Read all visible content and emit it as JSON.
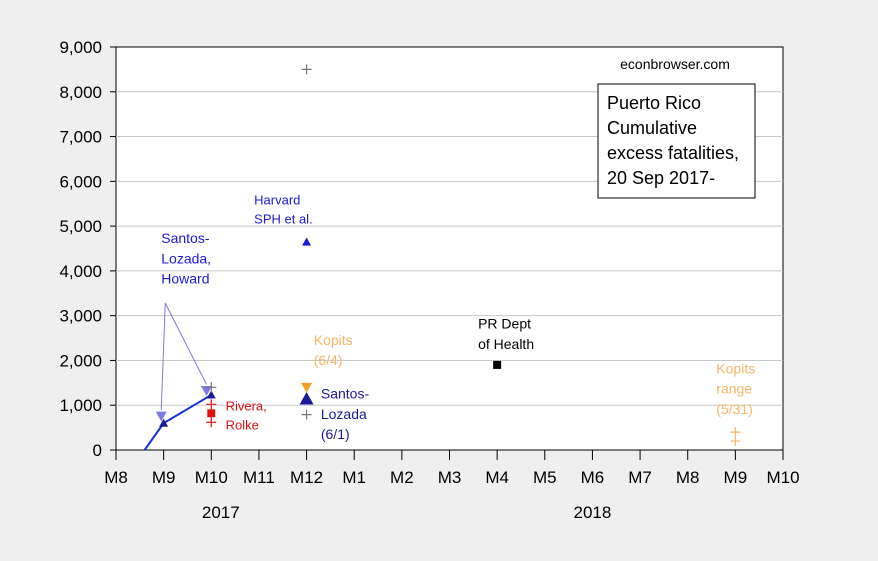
{
  "chart_data": {
    "type": "scatter",
    "source_label": "econbrowser.com",
    "legend_box": [
      "Puerto Rico",
      "Cumulative",
      "excess fatalities,",
      "20 Sep 2017-"
    ],
    "y_ticks": [
      "0",
      "1,000",
      "2,000",
      "3,000",
      "4,000",
      "5,000",
      "6,000",
      "7,000",
      "8,000",
      "9,000"
    ],
    "ylim": [
      0,
      9000
    ],
    "grid": true,
    "x_ticks": [
      "M8",
      "M9",
      "M10",
      "M11",
      "M12",
      "M1",
      "M2",
      "M3",
      "M4",
      "M5",
      "M6",
      "M7",
      "M8",
      "M9",
      "M10"
    ],
    "year_labels": [
      {
        "text": "2017",
        "at": 2.2
      },
      {
        "text": "2018",
        "at": 10.0
      }
    ],
    "colors": {
      "santos_howard": "#7b7be8",
      "santos_howard_line": "#1530e0",
      "harvard": "#1a1adb",
      "santos_lozada": "#1a1a9c",
      "rivera_rolke": "#e01010",
      "kopits": "#f5b666",
      "kopits_triangle": "#f5a020",
      "pr_dept": "#000000",
      "plus_gray": "#777777"
    },
    "series": [
      {
        "name": "Santos-Lozada, Howard",
        "marker": "line",
        "points": [
          [
            0.6,
            0
          ],
          [
            1.0,
            600
          ],
          [
            2.0,
            1230
          ]
        ]
      },
      {
        "name": "Santos-Lozada, Howard",
        "marker": "triangle-down",
        "points": [
          [
            0.95,
            760
          ],
          [
            1.9,
            1330
          ]
        ]
      },
      {
        "name": "Harvard SPH et al.",
        "marker": "triangle-up",
        "points": [
          [
            4.0,
            4645
          ]
        ]
      },
      {
        "name": "Santos-Lozada (6/1)",
        "marker": "triangle-up-large",
        "points": [
          [
            4.0,
            1140
          ]
        ]
      },
      {
        "name": "Kopits (6/4)",
        "marker": "triangle-down",
        "points": [
          [
            4.0,
            1400
          ]
        ]
      },
      {
        "name": "Rivera, Rolke",
        "marker": "square",
        "points": [
          [
            2.0,
            820
          ]
        ]
      },
      {
        "name": "Rivera, Rolke",
        "marker": "plus-red",
        "points": [
          [
            2.0,
            1020
          ],
          [
            2.0,
            620
          ]
        ]
      },
      {
        "name": "PR Dept of Health",
        "marker": "square",
        "points": [
          [
            8.0,
            1900
          ]
        ]
      },
      {
        "name": "Harvard SPH et al.",
        "marker": "plus-gray",
        "points": [
          [
            4.0,
            8500
          ],
          [
            4.0,
            790
          ],
          [
            2.0,
            1400
          ]
        ]
      },
      {
        "name": "Kopits range (5/31)",
        "marker": "plus-orange",
        "points": [
          [
            13.0,
            400
          ],
          [
            13.0,
            200
          ]
        ]
      }
    ],
    "annotations": [
      {
        "lines": [
          "Santos-",
          "Lozada,",
          "Howard"
        ],
        "color": "#1a1adb",
        "x": 0.95,
        "y": 4620,
        "size": 14
      },
      {
        "lines": [
          "Harvard",
          "SPH et al."
        ],
        "color": "#1a1adb",
        "x": 2.9,
        "y": 5480,
        "size": 13
      },
      {
        "lines": [
          "Kopits",
          "(6/4)"
        ],
        "color": "#f5b666",
        "x": 4.15,
        "y": 2350,
        "size": 14
      },
      {
        "lines": [
          "Santos-",
          "Lozada",
          "(6/1)"
        ],
        "color": "#1a1a9c",
        "x": 4.3,
        "y": 1150,
        "size": 14
      },
      {
        "lines": [
          "Rivera,",
          "Rolke"
        ],
        "color": "#e01010",
        "x": 2.3,
        "y": 880,
        "size": 13
      },
      {
        "lines": [
          "PR Dept",
          "of Health"
        ],
        "color": "#000000",
        "x": 7.6,
        "y": 2710,
        "size": 14
      },
      {
        "lines": [
          "Kopits",
          "range",
          "(5/31)"
        ],
        "color": "#f5b666",
        "x": 12.6,
        "y": 1710,
        "size": 14
      }
    ]
  }
}
